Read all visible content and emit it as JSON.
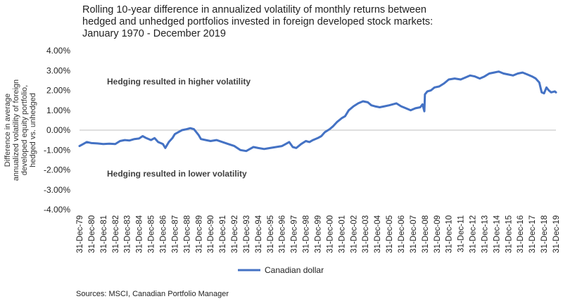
{
  "chart_data": {
    "type": "line",
    "title_lines": [
      "Rolling 10-year difference in annualized volatility of monthly returns between",
      "hedged and unhedged portfolios invested in foreign developed stock markets:",
      "January 1970 - December 2019"
    ],
    "ylabel_lines": [
      "Difference in average",
      "annualized volatility of foreign",
      "developed equity portfolio,",
      "hedged vs. unhedged"
    ],
    "xlabel": "",
    "ylim": [
      -0.04,
      0.04
    ],
    "y_ticks": [
      {
        "value": 0.04,
        "label": "4.00%"
      },
      {
        "value": 0.03,
        "label": "3.00%"
      },
      {
        "value": 0.02,
        "label": "2.00%"
      },
      {
        "value": 0.01,
        "label": "1.00%"
      },
      {
        "value": 0.0,
        "label": "0.00%"
      },
      {
        "value": -0.01,
        "label": "-1.00%"
      },
      {
        "value": -0.02,
        "label": "-2.00%"
      },
      {
        "value": -0.03,
        "label": "-3.00%"
      },
      {
        "value": -0.04,
        "label": "-4.00%"
      }
    ],
    "x_tick_labels": [
      "31-Dec-79",
      "31-Dec-80",
      "31-Dec-81",
      "31-Dec-82",
      "31-Dec-83",
      "31-Dec-84",
      "31-Dec-85",
      "31-Dec-86",
      "31-Dec-87",
      "31-Dec-88",
      "31-Dec-89",
      "31-Dec-90",
      "31-Dec-91",
      "31-Dec-92",
      "31-Dec-93",
      "31-Dec-94",
      "31-Dec-95",
      "31-Dec-96",
      "31-Dec-97",
      "31-Dec-98",
      "31-Dec-99",
      "31-Dec-00",
      "31-Dec-01",
      "31-Dec-02",
      "31-Dec-03",
      "31-Dec-04",
      "31-Dec-05",
      "31-Dec-06",
      "31-Dec-07",
      "31-Dec-08",
      "31-Dec-09",
      "31-Dec-10",
      "31-Dec-11",
      "31-Dec-12",
      "31-Dec-13",
      "31-Dec-14",
      "31-Dec-15",
      "31-Dec-16",
      "31-Dec-17",
      "31-Dec-18",
      "31-Dec-19"
    ],
    "x_range": [
      1979.0,
      2019.0
    ],
    "annotations": {
      "higher": "Hedging resulted in higher volatility",
      "lower": "Hedging resulted in lower volatility"
    },
    "legend_position": "bottom-center",
    "series": [
      {
        "name": "Canadian dollar",
        "color": "#4472C4",
        "points": [
          [
            1979.0,
            -0.008
          ],
          [
            1979.3,
            -0.007
          ],
          [
            1979.6,
            -0.006
          ],
          [
            1980.0,
            -0.0065
          ],
          [
            1980.5,
            -0.0067
          ],
          [
            1981.0,
            -0.007
          ],
          [
            1981.5,
            -0.0068
          ],
          [
            1982.0,
            -0.007
          ],
          [
            1982.4,
            -0.0055
          ],
          [
            1982.8,
            -0.005
          ],
          [
            1983.2,
            -0.0052
          ],
          [
            1983.6,
            -0.0045
          ],
          [
            1984.0,
            -0.0042
          ],
          [
            1984.3,
            -0.003
          ],
          [
            1984.6,
            -0.004
          ],
          [
            1985.0,
            -0.005
          ],
          [
            1985.3,
            -0.004
          ],
          [
            1985.6,
            -0.006
          ],
          [
            1986.0,
            -0.007
          ],
          [
            1986.2,
            -0.009
          ],
          [
            1986.5,
            -0.006
          ],
          [
            1986.8,
            -0.004
          ],
          [
            1987.0,
            -0.002
          ],
          [
            1987.3,
            -0.001
          ],
          [
            1987.6,
            0.0
          ],
          [
            1988.0,
            0.0005
          ],
          [
            1988.3,
            0.001
          ],
          [
            1988.6,
            0.0005
          ],
          [
            1988.8,
            -0.001
          ],
          [
            1989.0,
            -0.0025
          ],
          [
            1989.2,
            -0.0045
          ],
          [
            1989.6,
            -0.005
          ],
          [
            1990.0,
            -0.0055
          ],
          [
            1990.5,
            -0.005
          ],
          [
            1991.0,
            -0.006
          ],
          [
            1991.5,
            -0.007
          ],
          [
            1992.0,
            -0.008
          ],
          [
            1992.5,
            -0.01
          ],
          [
            1993.0,
            -0.0105
          ],
          [
            1993.3,
            -0.0095
          ],
          [
            1993.6,
            -0.0085
          ],
          [
            1994.0,
            -0.009
          ],
          [
            1994.5,
            -0.0095
          ],
          [
            1995.0,
            -0.009
          ],
          [
            1995.5,
            -0.0085
          ],
          [
            1996.0,
            -0.008
          ],
          [
            1996.3,
            -0.007
          ],
          [
            1996.6,
            -0.006
          ],
          [
            1996.9,
            -0.0085
          ],
          [
            1997.2,
            -0.009
          ],
          [
            1997.6,
            -0.007
          ],
          [
            1998.0,
            -0.0055
          ],
          [
            1998.3,
            -0.006
          ],
          [
            1998.6,
            -0.005
          ],
          [
            1999.0,
            -0.004
          ],
          [
            1999.3,
            -0.003
          ],
          [
            1999.6,
            -0.001
          ],
          [
            2000.0,
            0.0005
          ],
          [
            2000.3,
            0.002
          ],
          [
            2000.6,
            0.004
          ],
          [
            2001.0,
            0.006
          ],
          [
            2001.3,
            0.007
          ],
          [
            2001.6,
            0.01
          ],
          [
            2002.0,
            0.012
          ],
          [
            2002.4,
            0.0135
          ],
          [
            2002.8,
            0.0145
          ],
          [
            2003.2,
            0.014
          ],
          [
            2003.5,
            0.0125
          ],
          [
            2003.8,
            0.012
          ],
          [
            2004.2,
            0.0115
          ],
          [
            2004.6,
            0.012
          ],
          [
            2005.0,
            0.0125
          ],
          [
            2005.3,
            0.013
          ],
          [
            2005.6,
            0.0135
          ],
          [
            2006.0,
            0.012
          ],
          [
            2006.4,
            0.011
          ],
          [
            2006.8,
            0.01
          ],
          [
            2007.2,
            0.011
          ],
          [
            2007.6,
            0.0115
          ],
          [
            2007.8,
            0.013
          ],
          [
            2007.95,
            0.0095
          ],
          [
            2008.0,
            0.018
          ],
          [
            2008.2,
            0.0195
          ],
          [
            2008.5,
            0.02
          ],
          [
            2008.8,
            0.0215
          ],
          [
            2009.2,
            0.022
          ],
          [
            2009.6,
            0.0235
          ],
          [
            2010.0,
            0.0255
          ],
          [
            2010.5,
            0.026
          ],
          [
            2011.0,
            0.0255
          ],
          [
            2011.4,
            0.0265
          ],
          [
            2011.8,
            0.0275
          ],
          [
            2012.2,
            0.027
          ],
          [
            2012.6,
            0.026
          ],
          [
            2013.0,
            0.027
          ],
          [
            2013.4,
            0.0285
          ],
          [
            2013.8,
            0.029
          ],
          [
            2014.2,
            0.0295
          ],
          [
            2014.6,
            0.0285
          ],
          [
            2015.0,
            0.028
          ],
          [
            2015.4,
            0.0275
          ],
          [
            2015.8,
            0.0285
          ],
          [
            2016.2,
            0.029
          ],
          [
            2016.6,
            0.028
          ],
          [
            2017.0,
            0.027
          ],
          [
            2017.3,
            0.026
          ],
          [
            2017.6,
            0.024
          ],
          [
            2017.8,
            0.019
          ],
          [
            2018.0,
            0.0185
          ],
          [
            2018.2,
            0.0215
          ],
          [
            2018.4,
            0.02
          ],
          [
            2018.6,
            0.019
          ],
          [
            2018.9,
            0.0195
          ],
          [
            2019.0,
            0.019
          ]
        ]
      }
    ]
  },
  "source": "Sources: MSCI, Canadian Portfolio Manager"
}
